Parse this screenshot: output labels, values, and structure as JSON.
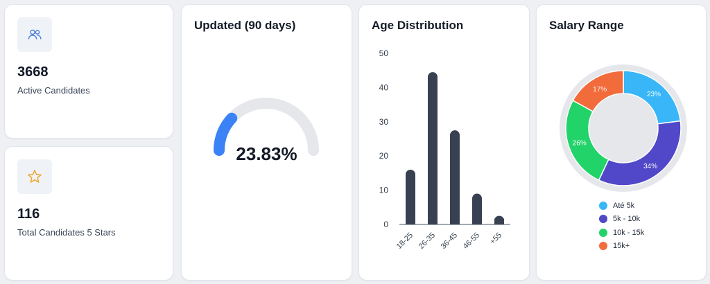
{
  "active": {
    "value": "3668",
    "label": "Active Candidates",
    "icon": "users-icon"
  },
  "stars": {
    "value": "116",
    "label": "Total Candidates 5 Stars",
    "icon": "star-icon"
  },
  "gauge": {
    "title": "Updated (90 days)",
    "percent": 23.83,
    "display": "23.83%",
    "fill_color": "#3b82f6",
    "track_color": "#e5e7eb"
  },
  "age": {
    "title": "Age Distribution",
    "bar_color": "#374151"
  },
  "salary": {
    "title": "Salary Range"
  },
  "chart_data": [
    {
      "type": "bar",
      "title": "Age Distribution",
      "categories": [
        "18-25",
        "26-35",
        "36-45",
        "46-55",
        "+55"
      ],
      "values": [
        16,
        44.5,
        27.5,
        9,
        2.5
      ],
      "ylim": [
        0,
        50
      ],
      "yticks": [
        "0",
        "10",
        "20",
        "30",
        "40",
        "50"
      ],
      "grid": false
    },
    {
      "type": "pie",
      "title": "Salary Range",
      "labels": [
        "Até 5k",
        "5k - 10k",
        "10k - 15k",
        "15k+"
      ],
      "values": [
        23,
        34,
        26,
        17
      ],
      "value_labels": [
        "23%",
        "34%",
        "26%",
        "17%"
      ],
      "colors": [
        "#38b6f8",
        "#5048c8",
        "#22d36a",
        "#f26b3a"
      ],
      "legend": "bottom"
    }
  ]
}
